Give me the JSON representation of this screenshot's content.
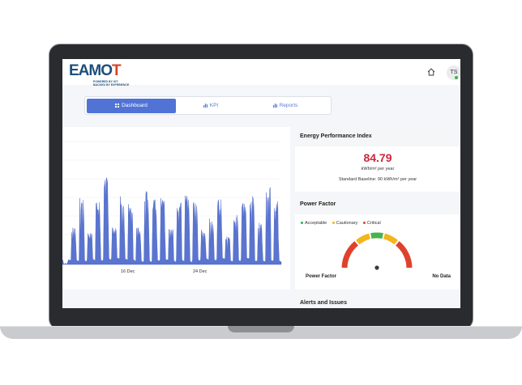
{
  "header": {
    "logo_text_main": "EAMO",
    "logo_text_accent": "T",
    "logo_tagline_1": "POWERED BY IOT",
    "logo_tagline_2": "BACKED BY EXPERIENCE",
    "user_initials": "TS"
  },
  "tabs": [
    {
      "label": "Dashboard",
      "active": true
    },
    {
      "label": "KPI",
      "active": false
    },
    {
      "label": "Reports",
      "active": false
    }
  ],
  "epi": {
    "title": "Energy Performance Index",
    "value": "84.79",
    "unit": "kWh/m² per year",
    "baseline": "Standard Baseline: 90 kWh/m² per year"
  },
  "power_factor": {
    "title": "Power Factor",
    "legend": [
      {
        "label": "Acceptable",
        "color": "#2eae5a"
      },
      {
        "label": "Cautionary",
        "color": "#f2b51b"
      },
      {
        "label": "Critical",
        "color": "#e0412c"
      }
    ],
    "gauge_colors": [
      "#e0412c",
      "#f2b51b",
      "#48b34c",
      "#f2b51b",
      "#e0412c"
    ],
    "label": "Power Factor",
    "value": "No Data"
  },
  "alerts": {
    "title": "Alerts and Issues"
  },
  "chart_data": {
    "type": "area",
    "x_ticks": [
      "16 Dec",
      "24 Dec"
    ],
    "series_color": "#5a74cf",
    "peaks": [
      0.0,
      0.4,
      0.72,
      0.35,
      0.7,
      0.95,
      0.42,
      0.75,
      0.65,
      0.42,
      0.8,
      0.7,
      0.72,
      0.38,
      0.7,
      0.75,
      0.72,
      0.4,
      0.5,
      0.72,
      0.3,
      0.55,
      0.68,
      0.75,
      0.45,
      0.88,
      0.7
    ]
  }
}
